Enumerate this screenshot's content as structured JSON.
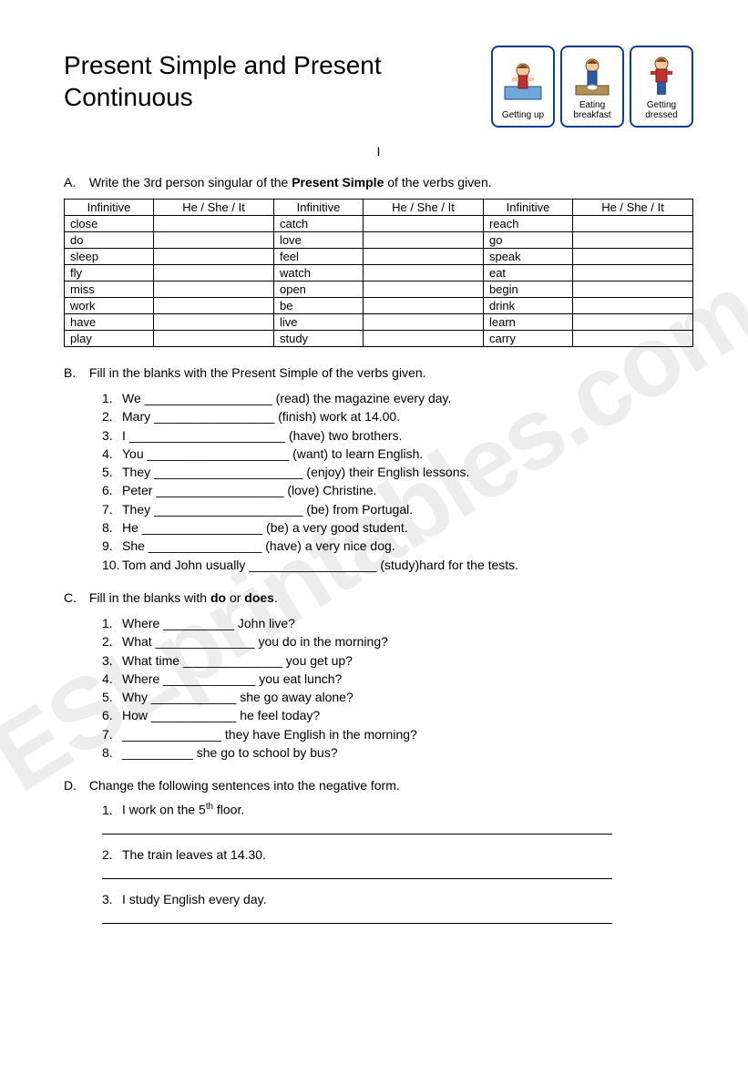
{
  "watermark": "ESLprintables.com",
  "title_line1": " Present Simple and Present",
  "title_line2": "Continuous",
  "cards": [
    {
      "label": "Getting up"
    },
    {
      "label": "Eating breakfast"
    },
    {
      "label": "Getting dressed"
    }
  ],
  "section_numeral": "I",
  "sectionA": {
    "label": "A.",
    "text_pre": "Write the 3rd person singular of the ",
    "text_bold": "Present Simple",
    "text_post": " of the verbs given.",
    "headers": [
      "Infinitive",
      "He / She / It",
      "Infinitive",
      "He / She / It",
      "Infinitive",
      "He / She / It"
    ],
    "rows": [
      [
        "close",
        "",
        "catch",
        "",
        "reach",
        ""
      ],
      [
        "do",
        "",
        "love",
        "",
        "go",
        ""
      ],
      [
        "sleep",
        "",
        "feel",
        "",
        "speak",
        ""
      ],
      [
        "fly",
        "",
        "watch",
        "",
        "eat",
        ""
      ],
      [
        "miss",
        "",
        "open",
        "",
        "begin",
        ""
      ],
      [
        "work",
        "",
        "be",
        "",
        "drink",
        ""
      ],
      [
        "have",
        "",
        "live",
        "",
        "learn",
        ""
      ],
      [
        "play",
        "",
        "study",
        "",
        "carry",
        ""
      ]
    ]
  },
  "sectionB": {
    "label": "B.",
    "text": "Fill in the blanks with the Present Simple of the verbs given.",
    "items": [
      "We __________________ (read) the magazine every day.",
      "Mary _________________ (finish) work at 14.00.",
      "I ______________________ (have) two brothers.",
      "You ____________________ (want) to learn English.",
      "They _____________________ (enjoy) their English lessons.",
      "Peter __________________ (love) Christine.",
      "They _____________________ (be) from Portugal.",
      "He _________________ (be) a very good student.",
      "She ________________ (have) a very nice dog.",
      "Tom and John usually __________________ (study)hard for the tests."
    ]
  },
  "sectionC": {
    "label": "C.",
    "text_pre": "Fill in the blanks with ",
    "text_b1": "do",
    "text_mid": " or ",
    "text_b2": "does",
    "text_post": ".",
    "items": [
      "Where __________ John live?",
      "What ______________ you do in the morning?",
      "What time ______________ you get up?",
      "Where _____________ you eat lunch?",
      "Why ____________ she go away alone?",
      "How ____________ he feel today?",
      "______________ they have English in the morning?",
      "__________ she go to school by bus?"
    ]
  },
  "sectionD": {
    "label": "D.",
    "text": "Change the following sentences into the negative form.",
    "items": [
      {
        "num": "1.",
        "pre": "I work on the 5",
        "sup": "th",
        "post": " floor."
      },
      {
        "num": "2.",
        "pre": "The train leaves at 14.30.",
        "sup": "",
        "post": ""
      },
      {
        "num": "3.",
        "pre": "I study English every day.",
        "sup": "",
        "post": ""
      }
    ]
  }
}
